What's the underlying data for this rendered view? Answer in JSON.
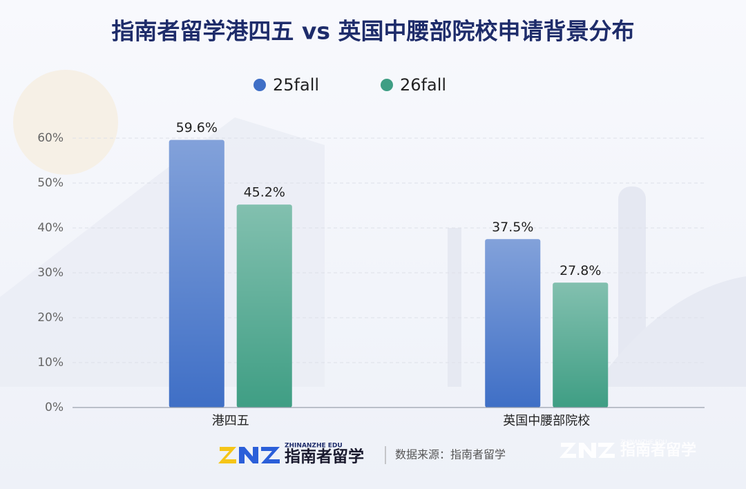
{
  "chart_data": {
    "type": "bar",
    "title": "指南者留学港四五 vs 英国中腰部院校申请背景分布",
    "categories": [
      "港四五",
      "英国中腰部院校"
    ],
    "series": [
      {
        "name": "25fall",
        "color": "#3f6fc6",
        "values": [
          59.6,
          37.5
        ],
        "value_labels": [
          "59.6%",
          "37.5%"
        ]
      },
      {
        "name": "26fall",
        "color": "#3f9e84",
        "values": [
          45.2,
          27.8
        ],
        "value_labels": [
          "45.2%",
          "27.8%"
        ]
      }
    ],
    "ylim": [
      0,
      60
    ],
    "yticks": [
      {
        "value": 0,
        "label": "0%"
      },
      {
        "value": 10,
        "label": "10%"
      },
      {
        "value": 20,
        "label": "20%"
      },
      {
        "value": 30,
        "label": "30%"
      },
      {
        "value": 40,
        "label": "40%"
      },
      {
        "value": 50,
        "label": "50%"
      },
      {
        "value": 60,
        "label": "60%"
      }
    ],
    "grid": true,
    "logo_sub": "ZHINANZHE EDU",
    "logo_brand": "指南者留学",
    "source": "数据来源：指南者留学"
  }
}
